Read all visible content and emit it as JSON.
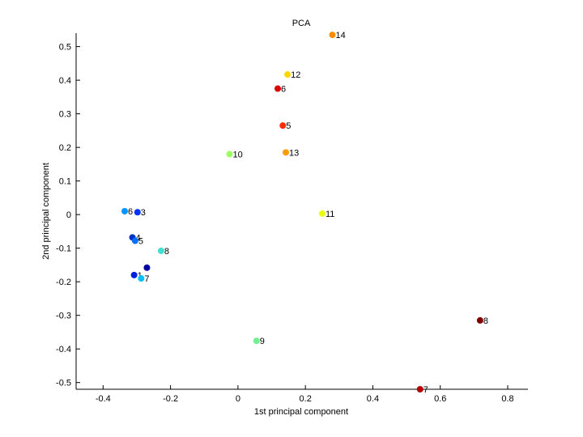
{
  "chart_data": {
    "type": "scatter",
    "title": "PCA",
    "xlabel": "1st principal component",
    "ylabel": "2nd principal component",
    "xlim": [
      -0.48,
      0.86
    ],
    "ylim": [
      -0.52,
      0.54
    ],
    "x_ticks": [
      -0.4,
      -0.2,
      0,
      0.2,
      0.4,
      0.6,
      0.8
    ],
    "x_tick_labels": [
      "-0.4",
      "-0.2",
      "0",
      "0.2",
      "0.4",
      "0.6",
      "0.8"
    ],
    "y_ticks": [
      0.5,
      0.4,
      0.3,
      0.2,
      0.1,
      0,
      -0.1,
      -0.2,
      -0.3,
      -0.4,
      -0.5
    ],
    "y_tick_labels": [
      "0.5",
      "0.4",
      "0.3",
      "0.2",
      "0.1",
      "0",
      "-0.1",
      "-0.2",
      "-0.3",
      "-0.4",
      "-0.5"
    ],
    "grid": false,
    "points": [
      {
        "label": "14",
        "x": 0.28,
        "y": 0.535,
        "color": "#ff8c00"
      },
      {
        "label": "12",
        "x": 0.147,
        "y": 0.417,
        "color": "#ffd700"
      },
      {
        "label": "6",
        "x": 0.118,
        "y": 0.375,
        "color": "#e00000"
      },
      {
        "label": "5",
        "x": 0.133,
        "y": 0.265,
        "color": "#ff2a00"
      },
      {
        "label": "13",
        "x": 0.142,
        "y": 0.185,
        "color": "#ff9a00"
      },
      {
        "label": "10",
        "x": -0.025,
        "y": 0.18,
        "color": "#9aff60"
      },
      {
        "label": "11",
        "x": 0.25,
        "y": 0.003,
        "color": "#e8ff10"
      },
      {
        "label": "6",
        "x": -0.336,
        "y": 0.01,
        "color": "#0096ff"
      },
      {
        "label": "3",
        "x": -0.298,
        "y": 0.007,
        "color": "#0030ff"
      },
      {
        "label": "4",
        "x": -0.313,
        "y": -0.068,
        "color": "#0030c8"
      },
      {
        "label": "5",
        "x": -0.305,
        "y": -0.078,
        "color": "#0070ff"
      },
      {
        "label": "8",
        "x": -0.228,
        "y": -0.108,
        "color": "#40e0d0"
      },
      {
        "label": "",
        "x": -0.27,
        "y": -0.158,
        "color": "#0000a0"
      },
      {
        "label": "1",
        "x": -0.308,
        "y": -0.18,
        "color": "#0020e0"
      },
      {
        "label": "7",
        "x": -0.287,
        "y": -0.19,
        "color": "#00c0ff"
      },
      {
        "label": "9",
        "x": 0.055,
        "y": -0.376,
        "color": "#70f090"
      },
      {
        "label": "8",
        "x": 0.718,
        "y": -0.315,
        "color": "#800000"
      },
      {
        "label": "7",
        "x": 0.54,
        "y": -0.52,
        "color": "#b40000"
      }
    ]
  }
}
